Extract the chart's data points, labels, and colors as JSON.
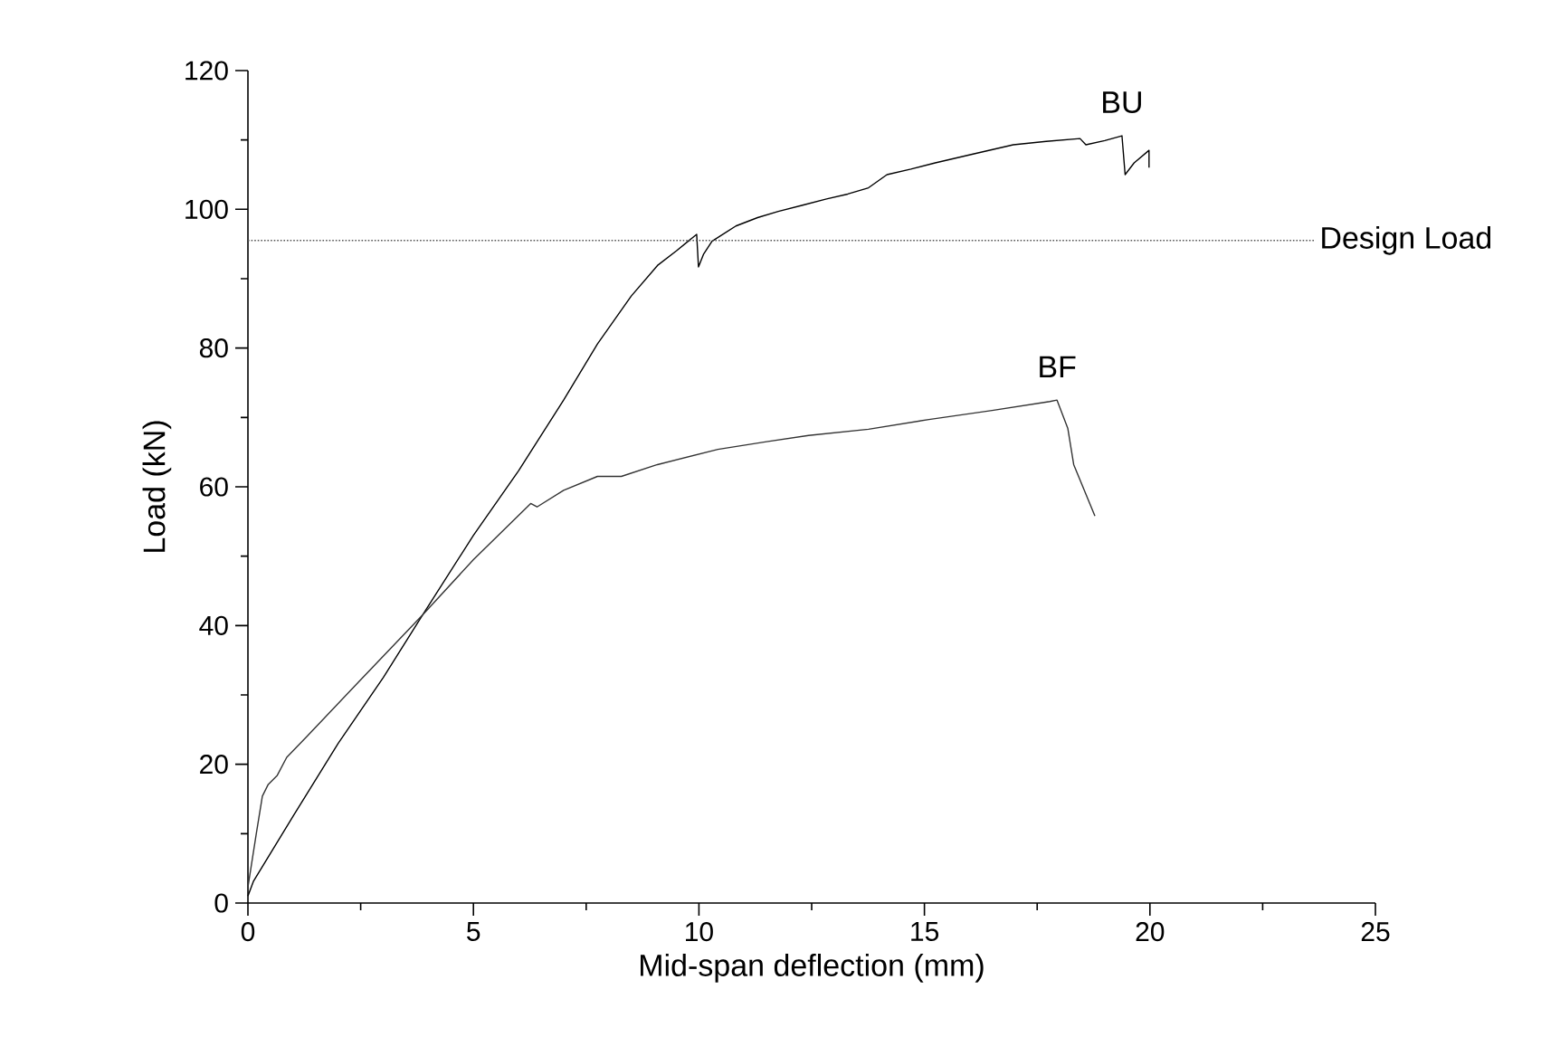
{
  "chart_data": {
    "type": "line",
    "xlabel": "Mid-span deflection (mm)",
    "ylabel": "Load (kN)",
    "xlim": [
      0,
      25
    ],
    "xticks": [
      0,
      5,
      10,
      15,
      20,
      25
    ],
    "ylim": [
      0,
      120
    ],
    "yticks": [
      0,
      20,
      40,
      60,
      80,
      100,
      120
    ],
    "grid": false,
    "marker": "none",
    "line_style": "solid",
    "ref_lines": [
      {
        "axis": "y",
        "value": 95.5,
        "label": "Design Load",
        "color": "#555555",
        "line_style": "dotted"
      }
    ],
    "series": [
      {
        "name": "BU",
        "color": "#000000",
        "x": [
          0,
          0.12,
          1.0,
          2.0,
          3.0,
          3.87,
          5.0,
          6.0,
          7.0,
          7.75,
          8.5,
          9.08,
          9.5,
          9.95,
          9.99,
          10.1,
          10.29,
          10.82,
          11.3,
          11.76,
          12.3,
          12.83,
          13.3,
          13.76,
          14.17,
          14.7,
          15.24,
          16.1,
          16.97,
          17.7,
          18.45,
          18.58,
          19.0,
          19.38,
          19.45,
          19.65,
          19.98,
          19.98
        ],
        "values": [
          1,
          3.1,
          12.5,
          23.0,
          32.5,
          41.5,
          53.0,
          62.3,
          72.5,
          80.6,
          87.5,
          91.9,
          94.0,
          96.4,
          91.7,
          93.5,
          95.4,
          97.6,
          98.8,
          99.7,
          100.6,
          101.5,
          102.2,
          103.1,
          105.0,
          105.8,
          106.7,
          108.0,
          109.3,
          109.8,
          110.2,
          109.3,
          109.9,
          110.6,
          105.0,
          106.7,
          108.5,
          106.0
        ]
      },
      {
        "name": "BF",
        "color": "#333333",
        "x": [
          0,
          0.19,
          0.32,
          0.45,
          0.65,
          0.86,
          1.32,
          2.4,
          3.87,
          5.0,
          6.27,
          6.41,
          7.0,
          7.75,
          8.28,
          9.08,
          10.42,
          11.5,
          12.43,
          13.76,
          15.1,
          16.5,
          17.78,
          17.94,
          18.18,
          18.31,
          18.78
        ],
        "values": [
          2.3,
          10.2,
          15.4,
          17.1,
          18.4,
          21.0,
          24.1,
          31.5,
          41.5,
          49.5,
          57.6,
          57.1,
          59.5,
          61.5,
          61.5,
          63.2,
          65.4,
          66.5,
          67.4,
          68.3,
          69.7,
          71.0,
          72.3,
          72.5,
          68.4,
          63.2,
          55.8
        ]
      }
    ]
  }
}
